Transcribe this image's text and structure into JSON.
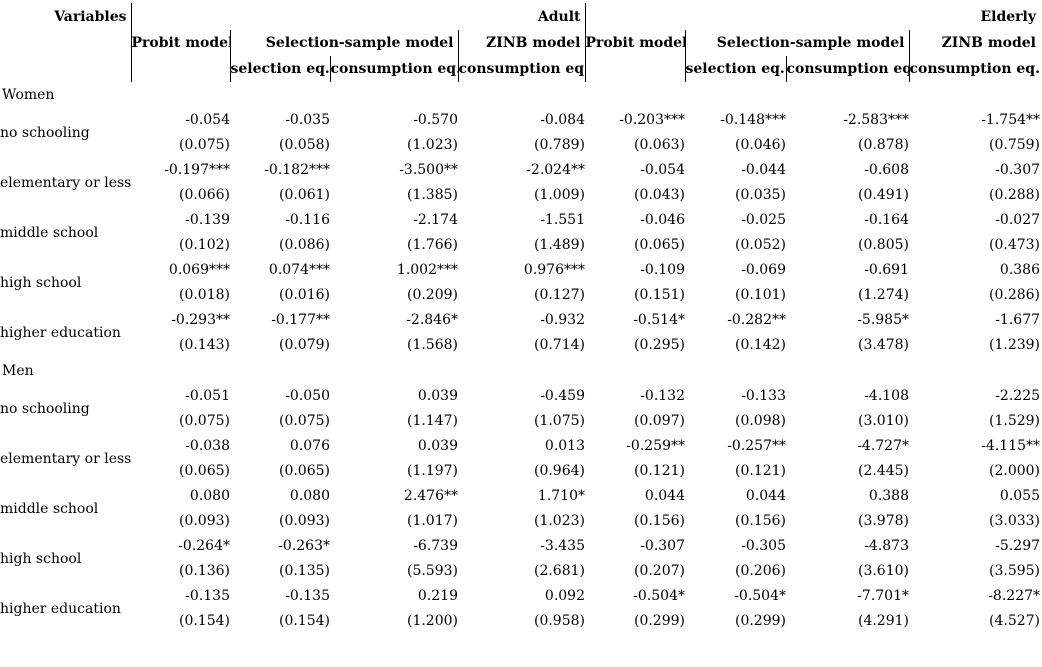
{
  "table": {
    "corner_label": "Variables",
    "groups": [
      {
        "label": "Adult"
      },
      {
        "label": "Elderly"
      }
    ],
    "models": {
      "probit": "Probit model",
      "selection_sample": "Selection-sample model",
      "zinb": "ZINB model"
    },
    "eq_headers": {
      "selection": "selection eq.",
      "consumption": "consumption eq."
    },
    "column_order": [
      "adult-probit",
      "adult-selection-eq",
      "adult-consumption-eq",
      "adult-zinb-consumption-eq",
      "elderly-probit",
      "elderly-selection-eq",
      "elderly-consumption-eq",
      "elderly-zinb-consumption-eq"
    ],
    "sections": [
      {
        "label": "Women",
        "rows": [
          {
            "label": "no schooling",
            "cells": [
              {
                "coef": "-0.054",
                "se": "(0.075)"
              },
              {
                "coef": "-0.035",
                "se": "(0.058)"
              },
              {
                "coef": "-0.570",
                "se": "(1.023)"
              },
              {
                "coef": "-0.084",
                "se": "(0.789)"
              },
              {
                "coef": "-0.203***",
                "se": "(0.063)"
              },
              {
                "coef": "-0.148***",
                "se": "(0.046)"
              },
              {
                "coef": "-2.583***",
                "se": "(0.878)"
              },
              {
                "coef": "-1.754**",
                "se": "(0.759)"
              }
            ]
          },
          {
            "label": "elementary or less",
            "cells": [
              {
                "coef": "-0.197***",
                "se": "(0.066)"
              },
              {
                "coef": "-0.182***",
                "se": "(0.061)"
              },
              {
                "coef": "-3.500**",
                "se": "(1.385)"
              },
              {
                "coef": "-2.024**",
                "se": "(1.009)"
              },
              {
                "coef": "-0.054",
                "se": "(0.043)"
              },
              {
                "coef": "-0.044",
                "se": "(0.035)"
              },
              {
                "coef": "-0.608",
                "se": "(0.491)"
              },
              {
                "coef": "-0.307",
                "se": "(0.288)"
              }
            ]
          },
          {
            "label": "middle school",
            "cells": [
              {
                "coef": "-0.139",
                "se": "(0.102)"
              },
              {
                "coef": "-0.116",
                "se": "(0.086)"
              },
              {
                "coef": "-2.174",
                "se": "(1.766)"
              },
              {
                "coef": "-1.551",
                "se": "(1.489)"
              },
              {
                "coef": "-0.046",
                "se": "(0.065)"
              },
              {
                "coef": "-0.025",
                "se": "(0.052)"
              },
              {
                "coef": "-0.164",
                "se": "(0.805)"
              },
              {
                "coef": "-0.027",
                "se": "(0.473)"
              }
            ]
          },
          {
            "label": "high school",
            "cells": [
              {
                "coef": "0.069***",
                "se": "(0.018)"
              },
              {
                "coef": "0.074***",
                "se": "(0.016)"
              },
              {
                "coef": "1.002***",
                "se": "(0.209)"
              },
              {
                "coef": "0.976***",
                "se": "(0.127)"
              },
              {
                "coef": "-0.109",
                "se": "(0.151)"
              },
              {
                "coef": "-0.069",
                "se": "(0.101)"
              },
              {
                "coef": "-0.691",
                "se": "(1.274)"
              },
              {
                "coef": "0.386",
                "se": "(0.286)"
              }
            ]
          },
          {
            "label": "higher education",
            "cells": [
              {
                "coef": "-0.293**",
                "se": "(0.143)"
              },
              {
                "coef": "-0.177**",
                "se": "(0.079)"
              },
              {
                "coef": "-2.846*",
                "se": "(1.568)"
              },
              {
                "coef": "-0.932",
                "se": "(0.714)"
              },
              {
                "coef": "-0.514*",
                "se": "(0.295)"
              },
              {
                "coef": "-0.282**",
                "se": "(0.142)"
              },
              {
                "coef": "-5.985*",
                "se": "(3.478)"
              },
              {
                "coef": "-1.677",
                "se": "(1.239)"
              }
            ]
          }
        ]
      },
      {
        "label": "Men",
        "rows": [
          {
            "label": "no schooling",
            "cells": [
              {
                "coef": "-0.051",
                "se": "(0.075)"
              },
              {
                "coef": "-0.050",
                "se": "(0.075)"
              },
              {
                "coef": "0.039",
                "se": "(1.147)"
              },
              {
                "coef": "-0.459",
                "se": "(1.075)"
              },
              {
                "coef": "-0.132",
                "se": "(0.097)"
              },
              {
                "coef": "-0.133",
                "se": "(0.098)"
              },
              {
                "coef": "-4.108",
                "se": "(3.010)"
              },
              {
                "coef": "-2.225",
                "se": "(1.529)"
              }
            ]
          },
          {
            "label": "elementary or less",
            "cells": [
              {
                "coef": "-0.038",
                "se": "(0.065)"
              },
              {
                "coef": "0.076",
                "se": "(0.065)"
              },
              {
                "coef": "0.039",
                "se": "(1.197)"
              },
              {
                "coef": "0.013",
                "se": "(0.964)"
              },
              {
                "coef": "-0.259**",
                "se": "(0.121)"
              },
              {
                "coef": "-0.257**",
                "se": "(0.121)"
              },
              {
                "coef": "-4.727*",
                "se": "(2.445)"
              },
              {
                "coef": "-4.115**",
                "se": "(2.000)"
              }
            ]
          },
          {
            "label": "middle school",
            "cells": [
              {
                "coef": "0.080",
                "se": "(0.093)"
              },
              {
                "coef": "0.080",
                "se": "(0.093)"
              },
              {
                "coef": "2.476**",
                "se": "(1.017)"
              },
              {
                "coef": "1.710*",
                "se": "(1.023)"
              },
              {
                "coef": "0.044",
                "se": "(0.156)"
              },
              {
                "coef": "0.044",
                "se": "(0.156)"
              },
              {
                "coef": "0.388",
                "se": "(3.978)"
              },
              {
                "coef": "0.055",
                "se": "(3.033)"
              }
            ]
          },
          {
            "label": "high school",
            "cells": [
              {
                "coef": "-0.264*",
                "se": "(0.136)"
              },
              {
                "coef": "-0.263*",
                "se": "(0.135)"
              },
              {
                "coef": "-6.739",
                "se": "(5.593)"
              },
              {
                "coef": "-3.435",
                "se": "(2.681)"
              },
              {
                "coef": "-0.307",
                "se": "(0.207)"
              },
              {
                "coef": "-0.305",
                "se": "(0.206)"
              },
              {
                "coef": "-4.873",
                "se": "(3.610)"
              },
              {
                "coef": "-5.297",
                "se": "(3.595)"
              }
            ]
          },
          {
            "label": "higher education",
            "cells": [
              {
                "coef": "-0.135",
                "se": "(0.154)"
              },
              {
                "coef": "-0.135",
                "se": "(0.154)"
              },
              {
                "coef": "0.219",
                "se": "(1.200)"
              },
              {
                "coef": "0.092",
                "se": "(0.958)"
              },
              {
                "coef": "-0.504*",
                "se": "(0.299)"
              },
              {
                "coef": "-0.504*",
                "se": "(0.299)"
              },
              {
                "coef": "-7.701*",
                "se": "(4.291)"
              },
              {
                "coef": "-8.227*",
                "se": "(4.527)"
              }
            ]
          }
        ]
      }
    ]
  }
}
